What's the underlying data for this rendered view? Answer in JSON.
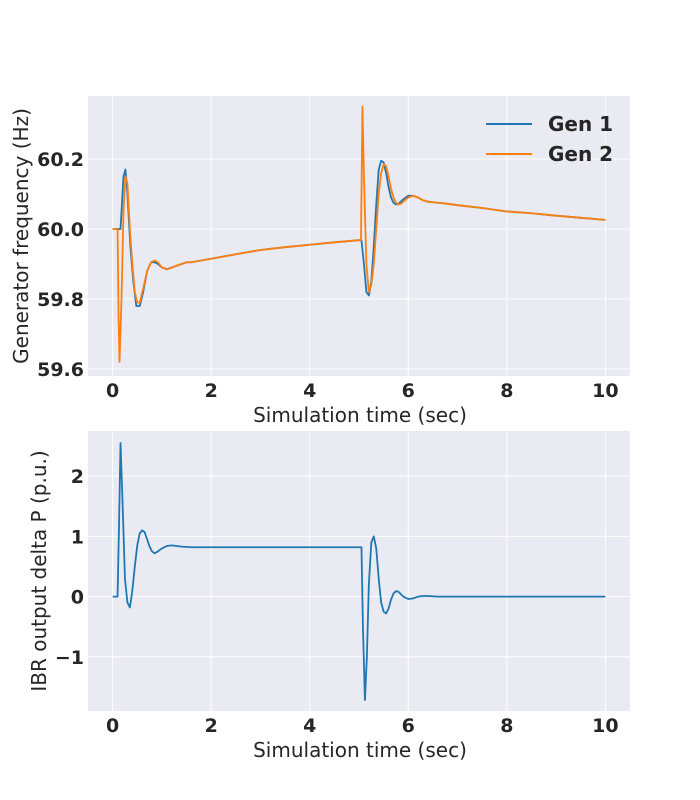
{
  "figure": {
    "background": "#ffffff",
    "panel_background": "#eaeaf2",
    "grid_color": "#ffffff",
    "text_color": "#262626"
  },
  "chart_data": [
    {
      "type": "line",
      "title": "",
      "xlabel": "Simulation time (sec)",
      "ylabel": "Generator frequency (Hz)",
      "xlim": [
        -0.5,
        10.5
      ],
      "ylim": [
        59.58,
        60.38
      ],
      "xticks": [
        0,
        2,
        4,
        6,
        8,
        10
      ],
      "xtick_labels": [
        "0",
        "2",
        "4",
        "6",
        "8",
        "10"
      ],
      "yticks": [
        59.6,
        59.8,
        60.0,
        60.2
      ],
      "ytick_labels": [
        "59.6",
        "59.8",
        "60.0",
        "60.2"
      ],
      "grid": true,
      "legend": {
        "position": "top-right",
        "entries": [
          "Gen 1",
          "Gen 2"
        ]
      },
      "series": [
        {
          "name": "Gen 1",
          "color": "#1f77b4",
          "x": [
            0,
            0.12,
            0.16,
            0.22,
            0.26,
            0.3,
            0.36,
            0.42,
            0.48,
            0.55,
            0.62,
            0.7,
            0.78,
            0.85,
            0.92,
            1.0,
            1.1,
            1.2,
            1.3,
            1.4,
            1.5,
            1.6,
            1.8,
            2.0,
            2.5,
            3.0,
            3.5,
            4.0,
            4.5,
            5.0,
            5.05,
            5.1,
            5.15,
            5.2,
            5.25,
            5.3,
            5.35,
            5.4,
            5.45,
            5.5,
            5.55,
            5.6,
            5.65,
            5.7,
            5.75,
            5.8,
            5.9,
            6.0,
            6.1,
            6.2,
            6.3,
            6.4,
            6.6,
            6.8,
            7.0,
            7.5,
            8.0,
            8.5,
            9.0,
            9.5,
            10.0
          ],
          "y": [
            60.0,
            60.0,
            60.0,
            60.15,
            60.17,
            60.1,
            59.95,
            59.85,
            59.78,
            59.78,
            59.82,
            59.88,
            59.905,
            59.905,
            59.9,
            59.89,
            59.885,
            59.89,
            59.895,
            59.9,
            59.905,
            59.905,
            59.91,
            59.915,
            59.928,
            59.94,
            59.948,
            59.955,
            59.962,
            59.968,
            59.968,
            59.9,
            59.82,
            59.81,
            59.85,
            59.95,
            60.07,
            60.17,
            60.195,
            60.19,
            60.16,
            60.12,
            60.09,
            60.075,
            60.07,
            60.072,
            60.085,
            60.095,
            60.095,
            60.09,
            60.082,
            60.078,
            60.075,
            60.072,
            60.068,
            60.06,
            60.05,
            60.045,
            60.038,
            60.032,
            60.026
          ]
        },
        {
          "name": "Gen 2",
          "color": "#ff7f0e",
          "x": [
            0,
            0.1,
            0.12,
            0.14,
            0.18,
            0.22,
            0.26,
            0.3,
            0.35,
            0.4,
            0.45,
            0.5,
            0.55,
            0.62,
            0.7,
            0.78,
            0.85,
            0.92,
            1.0,
            1.1,
            1.2,
            1.3,
            1.4,
            1.5,
            1.6,
            1.8,
            2.0,
            2.5,
            3.0,
            3.5,
            4.0,
            4.5,
            5.0,
            5.04,
            5.07,
            5.1,
            5.15,
            5.2,
            5.25,
            5.3,
            5.35,
            5.4,
            5.45,
            5.5,
            5.55,
            5.6,
            5.65,
            5.7,
            5.75,
            5.8,
            5.85,
            5.9,
            6.0,
            6.1,
            6.2,
            6.3,
            6.4,
            6.6,
            6.8,
            7.0,
            7.5,
            8.0,
            8.5,
            9.0,
            9.5,
            10.0
          ],
          "y": [
            60.0,
            60.0,
            59.75,
            59.62,
            59.8,
            60.05,
            60.15,
            60.13,
            60.0,
            59.9,
            59.82,
            59.79,
            59.79,
            59.83,
            59.88,
            59.905,
            59.91,
            59.905,
            59.89,
            59.885,
            59.89,
            59.895,
            59.9,
            59.905,
            59.905,
            59.91,
            59.915,
            59.928,
            59.94,
            59.948,
            59.955,
            59.962,
            59.968,
            59.968,
            60.35,
            60.15,
            59.9,
            59.82,
            59.84,
            59.9,
            60.0,
            60.1,
            60.16,
            60.185,
            60.18,
            60.15,
            60.115,
            60.09,
            60.075,
            60.07,
            60.072,
            60.078,
            60.09,
            60.095,
            60.09,
            60.082,
            60.078,
            60.075,
            60.072,
            60.068,
            60.06,
            60.05,
            60.045,
            60.038,
            60.032,
            60.026
          ]
        }
      ]
    },
    {
      "type": "line",
      "title": "",
      "xlabel": "Simulation time (sec)",
      "ylabel": "IBR output delta P (p.u.)",
      "xlim": [
        -0.5,
        10.5
      ],
      "ylim": [
        -1.9,
        2.75
      ],
      "xticks": [
        0,
        2,
        4,
        6,
        8,
        10
      ],
      "xtick_labels": [
        "0",
        "2",
        "4",
        "6",
        "8",
        "10"
      ],
      "yticks": [
        -1,
        0,
        1,
        2
      ],
      "ytick_labels": [
        "−1",
        "0",
        "1",
        "2"
      ],
      "grid": true,
      "series": [
        {
          "color": "#1f77b4",
          "x": [
            0,
            0.1,
            0.13,
            0.16,
            0.2,
            0.25,
            0.3,
            0.35,
            0.4,
            0.45,
            0.5,
            0.55,
            0.6,
            0.65,
            0.7,
            0.75,
            0.8,
            0.85,
            0.9,
            1.0,
            1.1,
            1.2,
            1.3,
            1.4,
            1.6,
            1.8,
            2.0,
            3.0,
            4.0,
            5.0,
            5.05,
            5.08,
            5.12,
            5.16,
            5.2,
            5.25,
            5.3,
            5.35,
            5.4,
            5.45,
            5.5,
            5.55,
            5.6,
            5.65,
            5.7,
            5.75,
            5.8,
            5.85,
            5.9,
            5.95,
            6.0,
            6.1,
            6.2,
            6.3,
            6.4,
            6.6,
            6.8,
            7.0,
            8.0,
            9.0,
            10.0
          ],
          "y": [
            0,
            0,
            1.2,
            2.55,
            1.6,
            0.3,
            -0.1,
            -0.18,
            0.1,
            0.5,
            0.85,
            1.05,
            1.1,
            1.07,
            0.95,
            0.83,
            0.75,
            0.72,
            0.74,
            0.8,
            0.84,
            0.85,
            0.84,
            0.83,
            0.82,
            0.82,
            0.82,
            0.82,
            0.82,
            0.82,
            0.82,
            -0.5,
            -1.72,
            -1.0,
            0.2,
            0.9,
            1.0,
            0.8,
            0.3,
            -0.1,
            -0.25,
            -0.28,
            -0.2,
            -0.05,
            0.05,
            0.09,
            0.08,
            0.04,
            0.0,
            -0.02,
            -0.04,
            -0.03,
            0.0,
            0.01,
            0.01,
            0.0,
            0.0,
            0.0,
            0.0,
            0.0,
            0.0
          ]
        }
      ]
    }
  ]
}
